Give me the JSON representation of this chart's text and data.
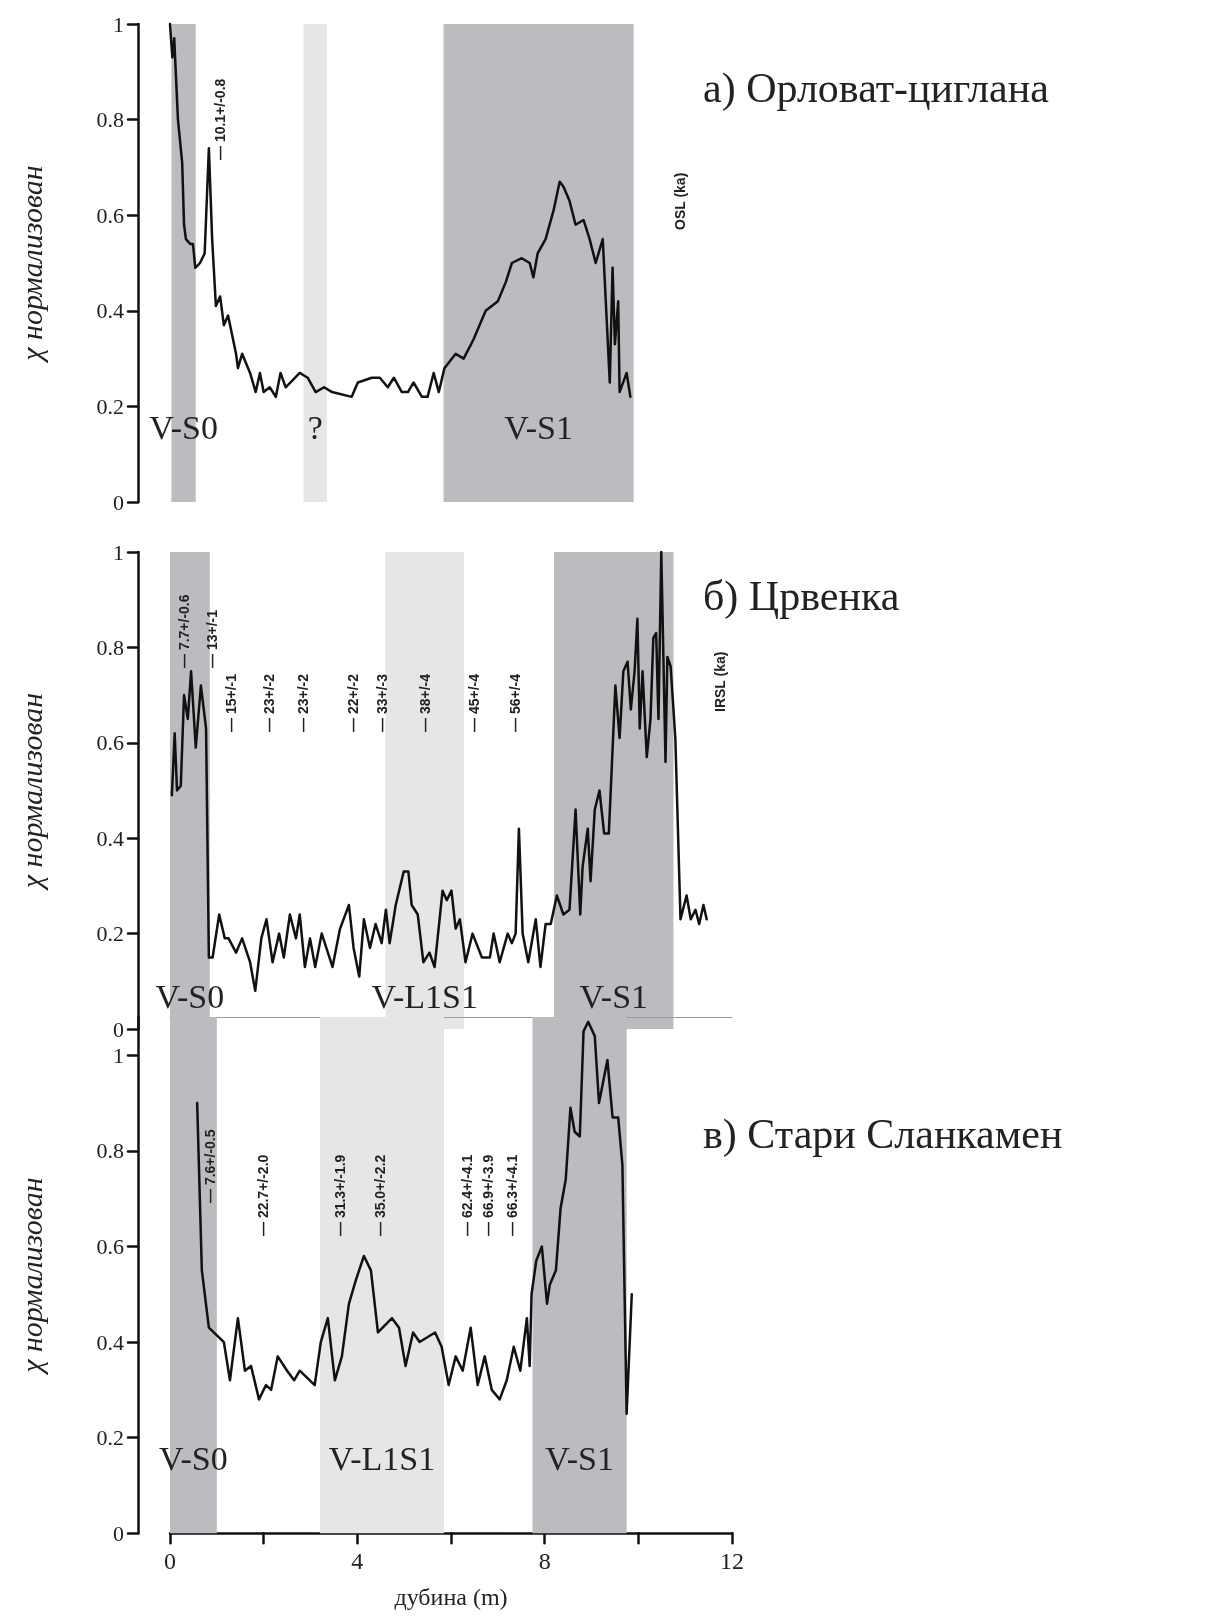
{
  "chart_data": [
    {
      "type": "line",
      "title": "а) Орловат-циглана",
      "ylabel": "χ нормализован",
      "xlim": [
        0,
        12
      ],
      "xticks": [
        0,
        4,
        8,
        12
      ],
      "ylim": [
        0,
        1
      ],
      "yticks": [
        0,
        0.2,
        0.4,
        0.6,
        0.8,
        1
      ],
      "tick_labels": "y",
      "series": [
        {
          "color": "#111111",
          "x": [
            0,
            0.05,
            0.09,
            0.17,
            0.26,
            0.3,
            0.34,
            0.43,
            0.49,
            0.54,
            0.64,
            0.74,
            0.83,
            0.9,
            0.98,
            1.07,
            1.15,
            1.24,
            1.41,
            1.45,
            1.54,
            1.71,
            1.83,
            1.92,
            2.0,
            2.13,
            2.26,
            2.36,
            2.47,
            2.77,
            2.94,
            3.11,
            3.29,
            3.46,
            3.88,
            4.01,
            4.31,
            4.48,
            4.65,
            4.78,
            4.95,
            5.08,
            5.2,
            5.38,
            5.5,
            5.63,
            5.74,
            5.86,
            6.1,
            6.27,
            6.48,
            6.74,
            7.0,
            7.17,
            7.3,
            7.51,
            7.68,
            7.76,
            7.85,
            8.02,
            8.19,
            8.32,
            8.4,
            8.53,
            8.66,
            8.83,
            8.96,
            9.09,
            9.24,
            9.39,
            9.45,
            9.5,
            9.57,
            9.6,
            9.75,
            9.83
          ],
          "values": [
            1.0,
            0.93,
            0.97,
            0.8,
            0.71,
            0.58,
            0.55,
            0.54,
            0.54,
            0.49,
            0.5,
            0.52,
            0.74,
            0.55,
            0.41,
            0.43,
            0.37,
            0.39,
            0.31,
            0.28,
            0.31,
            0.27,
            0.23,
            0.27,
            0.23,
            0.24,
            0.22,
            0.27,
            0.24,
            0.27,
            0.26,
            0.23,
            0.24,
            0.23,
            0.22,
            0.25,
            0.26,
            0.26,
            0.24,
            0.26,
            0.23,
            0.23,
            0.25,
            0.22,
            0.22,
            0.27,
            0.23,
            0.28,
            0.31,
            0.3,
            0.34,
            0.4,
            0.42,
            0.46,
            0.5,
            0.51,
            0.5,
            0.47,
            0.52,
            0.55,
            0.61,
            0.67,
            0.66,
            0.63,
            0.58,
            0.59,
            0.55,
            0.5,
            0.55,
            0.25,
            0.49,
            0.33,
            0.42,
            0.23,
            0.27,
            0.22
          ]
        }
      ],
      "bands": [
        {
          "axis": "x",
          "from": 0.03,
          "to": 0.55,
          "label": "V-S0",
          "color": "#bbbcbf"
        },
        {
          "axis": "x",
          "from": 2.85,
          "to": 3.35,
          "label": "?",
          "color": "#e6e6e6"
        },
        {
          "axis": "x",
          "from": 5.84,
          "to": 9.9,
          "label": "V-S1",
          "color": "#bbbcbf"
        }
      ],
      "annotations": [
        "— 10.1+/-0.8",
        "OSL (ka)"
      ]
    },
    {
      "type": "line",
      "title": "б) Црвенка",
      "ylabel": "χ нормализован",
      "xlim": [
        0,
        12
      ],
      "xticks": [
        0,
        4,
        8,
        12
      ],
      "ylim": [
        0,
        1
      ],
      "yticks": [
        0,
        0.2,
        0.4,
        0.6,
        0.8,
        1
      ],
      "tick_labels": "y",
      "series": [
        {
          "color": "#111111",
          "x": [
            0.04,
            0.1,
            0.15,
            0.23,
            0.3,
            0.38,
            0.45,
            0.55,
            0.66,
            0.77,
            0.83,
            0.91,
            1.05,
            1.17,
            1.25,
            1.41,
            1.54,
            1.71,
            1.82,
            1.95,
            2.06,
            2.19,
            2.33,
            2.43,
            2.56,
            2.69,
            2.77,
            2.88,
            2.99,
            3.1,
            3.24,
            3.47,
            3.63,
            3.82,
            3.92,
            4.04,
            4.14,
            4.27,
            4.39,
            4.52,
            4.61,
            4.69,
            4.82,
            4.99,
            5.09,
            5.16,
            5.29,
            5.41,
            5.54,
            5.65,
            5.82,
            5.91,
            6.01,
            6.1,
            6.19,
            6.31,
            6.46,
            6.66,
            6.83,
            6.91,
            7.04,
            7.21,
            7.3,
            7.38,
            7.45,
            7.53,
            7.65,
            7.81,
            7.91,
            8.02,
            8.13,
            8.26,
            8.4,
            8.53,
            8.66,
            8.76,
            8.81,
            8.92,
            8.98,
            9.07,
            9.17,
            9.27,
            9.37,
            9.51,
            9.6,
            9.68,
            9.77,
            9.84,
            9.92,
            9.98,
            10.03,
            10.09,
            10.18,
            10.26,
            10.32,
            10.38,
            10.43,
            10.49,
            10.58,
            10.62,
            10.69,
            10.79,
            10.9,
            11.03,
            11.12,
            11.22,
            11.3,
            11.39,
            11.46
          ],
          "values": [
            0.49,
            0.62,
            0.5,
            0.51,
            0.7,
            0.65,
            0.75,
            0.59,
            0.72,
            0.63,
            0.15,
            0.15,
            0.24,
            0.19,
            0.19,
            0.16,
            0.19,
            0.14,
            0.08,
            0.19,
            0.23,
            0.14,
            0.2,
            0.15,
            0.24,
            0.19,
            0.24,
            0.13,
            0.19,
            0.13,
            0.2,
            0.13,
            0.21,
            0.26,
            0.17,
            0.11,
            0.23,
            0.17,
            0.22,
            0.18,
            0.25,
            0.18,
            0.26,
            0.33,
            0.33,
            0.26,
            0.24,
            0.14,
            0.16,
            0.13,
            0.29,
            0.27,
            0.29,
            0.21,
            0.23,
            0.14,
            0.2,
            0.15,
            0.15,
            0.2,
            0.14,
            0.2,
            0.18,
            0.2,
            0.42,
            0.2,
            0.14,
            0.23,
            0.13,
            0.22,
            0.22,
            0.28,
            0.24,
            0.25,
            0.46,
            0.24,
            0.34,
            0.42,
            0.31,
            0.46,
            0.5,
            0.41,
            0.41,
            0.72,
            0.61,
            0.75,
            0.77,
            0.67,
            0.75,
            0.86,
            0.63,
            0.75,
            0.57,
            0.65,
            0.82,
            0.83,
            0.65,
            1.0,
            0.56,
            0.78,
            0.76,
            0.61,
            0.23,
            0.28,
            0.23,
            0.25,
            0.22,
            0.26,
            0.23
          ]
        }
      ],
      "bands": [
        {
          "axis": "x",
          "from": 0.0,
          "to": 0.85,
          "label": "V-S0",
          "color": "#bbbcbf"
        },
        {
          "axis": "x",
          "from": 4.6,
          "to": 6.28,
          "label": "V-L1S1",
          "color": "#e6e6e6"
        },
        {
          "axis": "x",
          "from": 8.2,
          "to": 10.75,
          "label": "V-S1",
          "color": "#bbbcbf"
        }
      ],
      "annotations": [
        "— 7.7+/-0.6",
        "— 13+/-1",
        "— 15+/-1",
        "— 23+/-2",
        "— 23+/-2",
        "— 22+/-2",
        "— 33+/-3",
        "— 38+/-4",
        "— 45+/-4",
        "— 56+/-4",
        "IRSL (ka)"
      ]
    },
    {
      "type": "line",
      "title": "в) Стари Сланкамен",
      "ylabel": "χ нормализован",
      "xlabel": "дубина (m)",
      "xlim": [
        0,
        12
      ],
      "xticks": [
        0,
        {
          "value": 2,
          "label": null
        },
        4,
        {
          "value": 6,
          "label": null
        },
        8,
        {
          "value": 10,
          "label": null
        },
        12
      ],
      "ylim": [
        0,
        1.08
      ],
      "yticks": [
        0,
        0.2,
        0.4,
        0.6,
        0.8,
        1
      ],
      "series": [
        {
          "color": "#111111",
          "x": [
            0.58,
            0.68,
            0.83,
            1.15,
            1.28,
            1.45,
            1.6,
            1.73,
            1.9,
            2.05,
            2.16,
            2.3,
            2.5,
            2.65,
            2.77,
            3.09,
            3.22,
            3.37,
            3.52,
            3.67,
            3.82,
            3.97,
            4.14,
            4.29,
            4.44,
            4.74,
            4.89,
            5.03,
            5.19,
            5.33,
            5.66,
            5.8,
            5.95,
            6.1,
            6.25,
            6.42,
            6.57,
            6.72,
            6.87,
            7.04,
            7.19,
            7.34,
            7.48,
            7.62,
            7.68,
            7.72,
            7.82,
            7.94,
            8.05,
            8.11,
            8.24,
            8.34,
            8.45,
            8.55,
            8.64,
            8.75,
            8.83,
            8.93,
            9.07,
            9.16,
            9.34,
            9.45,
            9.57,
            9.66,
            9.75,
            9.86
          ],
          "values": [
            0.9,
            0.55,
            0.43,
            0.4,
            0.32,
            0.45,
            0.34,
            0.35,
            0.28,
            0.31,
            0.3,
            0.37,
            0.34,
            0.32,
            0.34,
            0.31,
            0.4,
            0.45,
            0.32,
            0.37,
            0.48,
            0.53,
            0.58,
            0.55,
            0.42,
            0.45,
            0.43,
            0.35,
            0.42,
            0.4,
            0.42,
            0.39,
            0.31,
            0.37,
            0.34,
            0.43,
            0.31,
            0.37,
            0.3,
            0.28,
            0.32,
            0.39,
            0.34,
            0.45,
            0.35,
            0.5,
            0.57,
            0.6,
            0.48,
            0.52,
            0.55,
            0.68,
            0.74,
            0.89,
            0.84,
            0.83,
            1.05,
            1.07,
            1.04,
            0.9,
            0.99,
            0.87,
            0.87,
            0.77,
            0.25,
            0.5
          ]
        }
      ],
      "bands": [
        {
          "axis": "x",
          "from": 0.0,
          "to": 1.0,
          "label": "V-S0",
          "color": "#bbbcbf"
        },
        {
          "axis": "x",
          "from": 3.2,
          "to": 5.85,
          "label": "V-L1S1",
          "color": "#e6e6e6"
        },
        {
          "axis": "x",
          "from": 7.74,
          "to": 9.75,
          "label": "V-S1",
          "color": "#bbbcbf"
        }
      ],
      "annotations": [
        "— 7.6+/-0.5",
        "— 22.7+/-2.0",
        "— 31.3+/-1.9",
        "— 35.0+/-2.2",
        "— 62.4+/-4.1",
        "— 66.9+/-3.9",
        "— 66.3+/-4.1"
      ]
    }
  ]
}
